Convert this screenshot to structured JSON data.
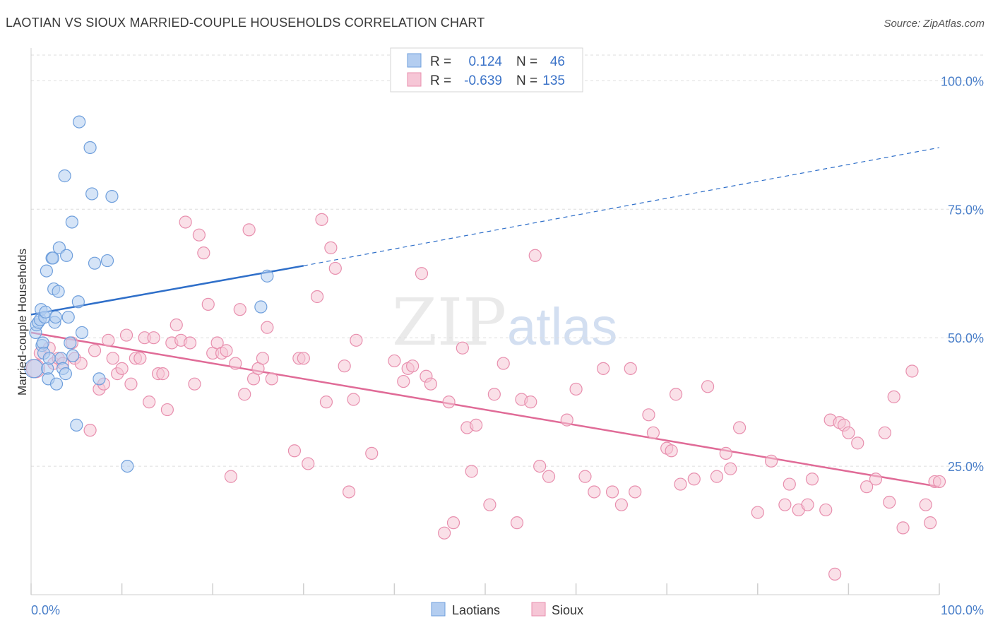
{
  "chart_data": {
    "type": "scatter",
    "title": "LAOTIAN VS SIOUX MARRIED-COUPLE HOUSEHOLDS CORRELATION CHART",
    "source": "Source: ZipAtlas.com",
    "ylabel": "Married-couple Households",
    "xlabel": "",
    "xlim": [
      0,
      100
    ],
    "ylim": [
      0,
      105
    ],
    "x_tick_labels": [
      "0.0%",
      "100.0%"
    ],
    "y_ticks": [
      25,
      50,
      75,
      100
    ],
    "y_tick_labels": [
      "25.0%",
      "50.0%",
      "75.0%",
      "100.0%"
    ],
    "grid": true,
    "watermark": {
      "zip": "ZIP",
      "atlas": "atlas"
    },
    "legend": {
      "r_label": "R =",
      "n_label": "N =",
      "entries": [
        {
          "name": "Laotians",
          "r": "0.124",
          "n": "46"
        },
        {
          "name": "Sioux",
          "r": "-0.639",
          "n": "135"
        }
      ]
    },
    "colors": {
      "laotians_fill": "#b3cdf0",
      "laotians_stroke": "#6f9fdc",
      "laotians_line": "#2f6fc9",
      "sioux_fill": "#f6c6d6",
      "sioux_stroke": "#e88fae",
      "sioux_line": "#e06b97",
      "grid": "#dedede",
      "tick_text": "#4a7fc9"
    },
    "series": [
      {
        "name": "Laotians",
        "trend": {
          "x0": 0,
          "y0": 54.5,
          "x1": 30,
          "y1": 64,
          "dash_x1": 100,
          "dash_y1": 87
        },
        "points": [
          [
            0.3,
            44
          ],
          [
            0.5,
            51
          ],
          [
            0.6,
            52.5
          ],
          [
            0.8,
            53
          ],
          [
            1.0,
            53.5
          ],
          [
            1.1,
            55.5
          ],
          [
            1.2,
            48.5
          ],
          [
            1.3,
            49
          ],
          [
            1.4,
            47
          ],
          [
            1.5,
            54
          ],
          [
            1.6,
            55
          ],
          [
            1.7,
            63
          ],
          [
            1.8,
            44
          ],
          [
            1.9,
            42
          ],
          [
            2.0,
            46
          ],
          [
            2.3,
            65.5
          ],
          [
            2.4,
            65.5
          ],
          [
            2.5,
            59.5
          ],
          [
            2.6,
            53
          ],
          [
            2.7,
            54
          ],
          [
            2.8,
            41
          ],
          [
            3.0,
            59
          ],
          [
            3.1,
            67.5
          ],
          [
            3.3,
            46
          ],
          [
            3.5,
            44
          ],
          [
            3.7,
            81.5
          ],
          [
            3.8,
            43
          ],
          [
            3.9,
            66
          ],
          [
            4.1,
            54
          ],
          [
            4.3,
            49
          ],
          [
            4.5,
            72.5
          ],
          [
            4.6,
            46.5
          ],
          [
            5.0,
            33
          ],
          [
            5.2,
            57
          ],
          [
            5.3,
            92
          ],
          [
            5.6,
            51
          ],
          [
            6.5,
            87
          ],
          [
            6.7,
            78
          ],
          [
            7.0,
            64.5
          ],
          [
            7.5,
            42
          ],
          [
            8.4,
            65
          ],
          [
            8.9,
            77.5
          ],
          [
            10.6,
            25
          ],
          [
            25.3,
            56
          ],
          [
            26.0,
            62
          ]
        ]
      },
      {
        "name": "Sioux",
        "trend": {
          "x0": 0,
          "y0": 51,
          "x1": 100,
          "y1": 21
        },
        "points": [
          [
            0.5,
            44
          ],
          [
            1.0,
            47
          ],
          [
            2.0,
            48
          ],
          [
            2.5,
            45
          ],
          [
            3.0,
            46
          ],
          [
            3.5,
            45
          ],
          [
            4.5,
            49
          ],
          [
            4.8,
            46
          ],
          [
            5.5,
            45
          ],
          [
            6.5,
            32
          ],
          [
            7.0,
            47.5
          ],
          [
            7.5,
            40
          ],
          [
            8.0,
            41
          ],
          [
            8.5,
            49.5
          ],
          [
            9.0,
            46
          ],
          [
            9.5,
            43
          ],
          [
            10.0,
            44
          ],
          [
            10.5,
            50.5
          ],
          [
            11.0,
            41
          ],
          [
            11.5,
            46
          ],
          [
            12.0,
            46
          ],
          [
            12.5,
            50
          ],
          [
            13.0,
            37.5
          ],
          [
            13.5,
            50
          ],
          [
            14.0,
            43
          ],
          [
            14.5,
            43
          ],
          [
            15.0,
            36
          ],
          [
            15.5,
            49
          ],
          [
            16.0,
            52.5
          ],
          [
            16.5,
            49.5
          ],
          [
            17.0,
            72.5
          ],
          [
            17.5,
            49
          ],
          [
            18.0,
            41
          ],
          [
            18.5,
            70
          ],
          [
            19.0,
            66.5
          ],
          [
            19.5,
            56.5
          ],
          [
            20.0,
            47
          ],
          [
            20.5,
            49
          ],
          [
            21.0,
            47
          ],
          [
            21.5,
            47.5
          ],
          [
            22.0,
            23
          ],
          [
            22.5,
            45
          ],
          [
            23.0,
            55.5
          ],
          [
            23.5,
            39
          ],
          [
            24.0,
            71
          ],
          [
            24.5,
            42
          ],
          [
            25.0,
            44
          ],
          [
            25.5,
            46
          ],
          [
            26.0,
            52
          ],
          [
            26.5,
            42
          ],
          [
            29.0,
            28
          ],
          [
            29.5,
            46
          ],
          [
            30.0,
            46
          ],
          [
            30.5,
            25.5
          ],
          [
            31.5,
            58
          ],
          [
            32.0,
            73
          ],
          [
            32.5,
            37.5
          ],
          [
            33.0,
            67.5
          ],
          [
            33.5,
            63.5
          ],
          [
            34.5,
            44.5
          ],
          [
            35.0,
            20
          ],
          [
            35.5,
            38
          ],
          [
            35.8,
            49.5
          ],
          [
            37.5,
            27.5
          ],
          [
            40.0,
            45.5
          ],
          [
            41.0,
            41.5
          ],
          [
            41.5,
            44
          ],
          [
            42.0,
            44.5
          ],
          [
            43.0,
            62.5
          ],
          [
            43.5,
            42.5
          ],
          [
            44.0,
            41
          ],
          [
            45.5,
            12
          ],
          [
            46.0,
            37.5
          ],
          [
            46.5,
            14
          ],
          [
            47.5,
            48
          ],
          [
            48.0,
            32.5
          ],
          [
            48.5,
            24
          ],
          [
            49.0,
            33
          ],
          [
            50.5,
            17.5
          ],
          [
            51.0,
            39
          ],
          [
            52.0,
            45
          ],
          [
            53.5,
            14
          ],
          [
            54.0,
            38
          ],
          [
            55.0,
            37.5
          ],
          [
            55.5,
            66
          ],
          [
            56.0,
            25
          ],
          [
            57.0,
            23
          ],
          [
            59.0,
            34
          ],
          [
            60.0,
            40
          ],
          [
            61.0,
            23
          ],
          [
            62.0,
            20
          ],
          [
            63.0,
            44
          ],
          [
            64.0,
            20
          ],
          [
            65.0,
            17.5
          ],
          [
            66.0,
            44
          ],
          [
            66.5,
            20
          ],
          [
            68.0,
            35
          ],
          [
            68.5,
            31.5
          ],
          [
            70.0,
            28.5
          ],
          [
            70.5,
            28
          ],
          [
            71.0,
            39
          ],
          [
            71.5,
            21.5
          ],
          [
            73.0,
            22.5
          ],
          [
            74.5,
            40.5
          ],
          [
            75.5,
            23
          ],
          [
            76.5,
            27.5
          ],
          [
            77.0,
            24.5
          ],
          [
            78.0,
            32.5
          ],
          [
            80.0,
            16
          ],
          [
            81.5,
            26
          ],
          [
            83.0,
            17.5
          ],
          [
            83.5,
            21.5
          ],
          [
            84.5,
            16.5
          ],
          [
            85.5,
            17.5
          ],
          [
            86.0,
            22.5
          ],
          [
            87.5,
            16.5
          ],
          [
            88.0,
            34
          ],
          [
            88.5,
            4
          ],
          [
            89.0,
            33.5
          ],
          [
            89.5,
            33
          ],
          [
            90.0,
            31.5
          ],
          [
            91.0,
            29.5
          ],
          [
            92.0,
            21
          ],
          [
            93.0,
            22.5
          ],
          [
            94.0,
            31.5
          ],
          [
            94.5,
            18
          ],
          [
            95.0,
            38.5
          ],
          [
            96.0,
            13
          ],
          [
            97.0,
            43.5
          ],
          [
            98.5,
            17.5
          ],
          [
            99.0,
            14
          ],
          [
            99.5,
            22
          ],
          [
            100.0,
            22
          ]
        ]
      }
    ]
  }
}
